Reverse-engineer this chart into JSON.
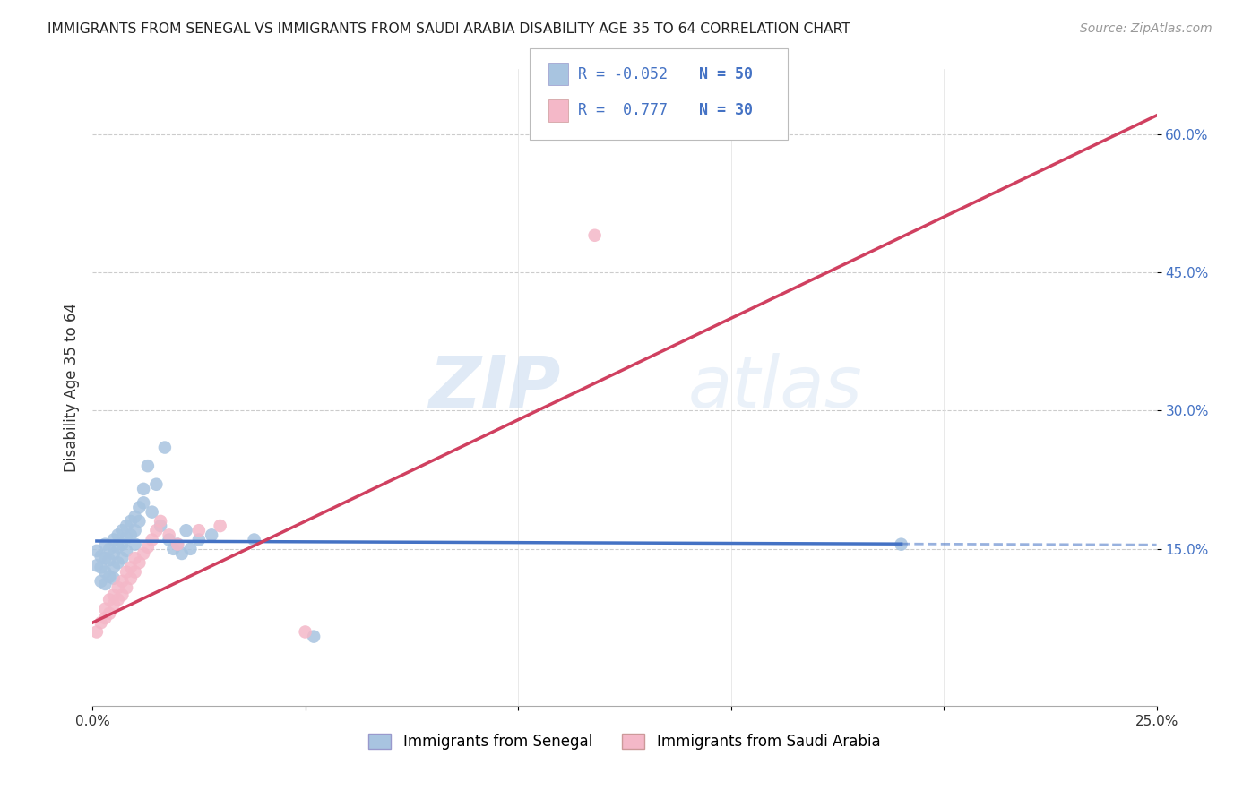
{
  "title": "IMMIGRANTS FROM SENEGAL VS IMMIGRANTS FROM SAUDI ARABIA DISABILITY AGE 35 TO 64 CORRELATION CHART",
  "source": "Source: ZipAtlas.com",
  "xlabel_label": "Immigrants from Senegal",
  "ylabel_label": "Disability Age 35 to 64",
  "xlabel2_label": "Immigrants from Saudi Arabia",
  "xlim": [
    0.0,
    0.25
  ],
  "ylim": [
    -0.02,
    0.67
  ],
  "xticks": [
    0.0,
    0.05,
    0.1,
    0.15,
    0.2,
    0.25
  ],
  "yticks": [
    0.15,
    0.3,
    0.45,
    0.6
  ],
  "ytick_labels": [
    "15.0%",
    "30.0%",
    "45.0%",
    "60.0%"
  ],
  "xtick_labels": [
    "0.0%",
    "",
    "",
    "",
    "",
    "25.0%"
  ],
  "legend_r1": "R = -0.052",
  "legend_n1": "N = 50",
  "legend_r2": "R =  0.777",
  "legend_n2": "N = 30",
  "color_senegal": "#a8c4e0",
  "color_saudi": "#f4b8c8",
  "color_senegal_line": "#4472c4",
  "color_saudi_line": "#d04060",
  "watermark_zip": "ZIP",
  "watermark_atlas": "atlas",
  "senegal_x": [
    0.001,
    0.001,
    0.002,
    0.002,
    0.002,
    0.003,
    0.003,
    0.003,
    0.003,
    0.004,
    0.004,
    0.004,
    0.005,
    0.005,
    0.005,
    0.005,
    0.006,
    0.006,
    0.006,
    0.007,
    0.007,
    0.007,
    0.008,
    0.008,
    0.008,
    0.009,
    0.009,
    0.01,
    0.01,
    0.01,
    0.011,
    0.011,
    0.012,
    0.012,
    0.013,
    0.014,
    0.015,
    0.016,
    0.017,
    0.018,
    0.019,
    0.02,
    0.021,
    0.022,
    0.023,
    0.025,
    0.028,
    0.038,
    0.052,
    0.19
  ],
  "senegal_y": [
    0.148,
    0.132,
    0.13,
    0.142,
    0.115,
    0.155,
    0.14,
    0.125,
    0.112,
    0.15,
    0.138,
    0.12,
    0.16,
    0.145,
    0.13,
    0.118,
    0.165,
    0.152,
    0.135,
    0.17,
    0.155,
    0.14,
    0.175,
    0.162,
    0.148,
    0.18,
    0.165,
    0.185,
    0.17,
    0.155,
    0.195,
    0.18,
    0.215,
    0.2,
    0.24,
    0.19,
    0.22,
    0.175,
    0.26,
    0.16,
    0.15,
    0.155,
    0.145,
    0.17,
    0.15,
    0.16,
    0.165,
    0.16,
    0.055,
    0.155
  ],
  "saudi_x": [
    0.001,
    0.002,
    0.003,
    0.003,
    0.004,
    0.004,
    0.005,
    0.005,
    0.006,
    0.006,
    0.007,
    0.007,
    0.008,
    0.008,
    0.009,
    0.009,
    0.01,
    0.01,
    0.011,
    0.012,
    0.013,
    0.014,
    0.015,
    0.016,
    0.018,
    0.02,
    0.025,
    0.03,
    0.05,
    0.118
  ],
  "saudi_y": [
    0.06,
    0.07,
    0.075,
    0.085,
    0.08,
    0.095,
    0.09,
    0.1,
    0.095,
    0.108,
    0.1,
    0.115,
    0.108,
    0.125,
    0.118,
    0.13,
    0.125,
    0.14,
    0.135,
    0.145,
    0.152,
    0.16,
    0.17,
    0.18,
    0.165,
    0.155,
    0.17,
    0.175,
    0.06,
    0.49
  ],
  "senegal_line_x": [
    0.001,
    0.19
  ],
  "senegal_line_xext": [
    0.19,
    0.25
  ],
  "saudi_line_x": [
    0.0,
    0.25
  ],
  "saudi_line_y": [
    0.07,
    0.62
  ]
}
